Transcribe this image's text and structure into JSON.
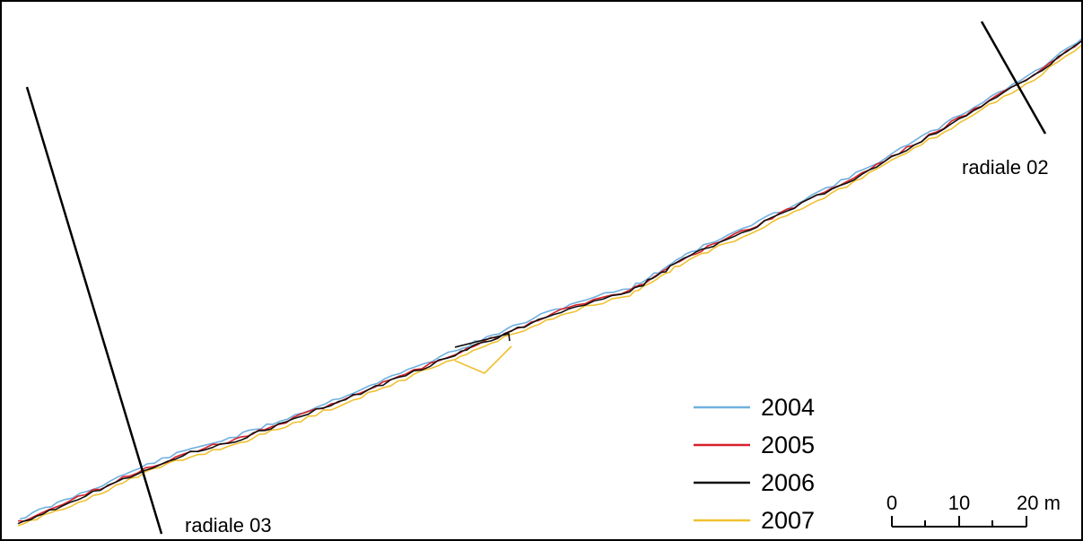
{
  "transects": [
    {
      "id": "radiale_02",
      "label": "radiale 02"
    },
    {
      "id": "radiale_03",
      "label": "radiale 03"
    }
  ],
  "legend": {
    "items": [
      {
        "year": "2004",
        "color": "#6fb0de"
      },
      {
        "year": "2005",
        "color": "#d8202a"
      },
      {
        "year": "2006",
        "color": "#111111"
      },
      {
        "year": "2007",
        "color": "#f0c030"
      }
    ]
  },
  "scale_bar": {
    "labels": [
      "0",
      "10",
      "20 m"
    ],
    "unit": "m",
    "values": [
      0,
      10,
      20
    ]
  }
}
